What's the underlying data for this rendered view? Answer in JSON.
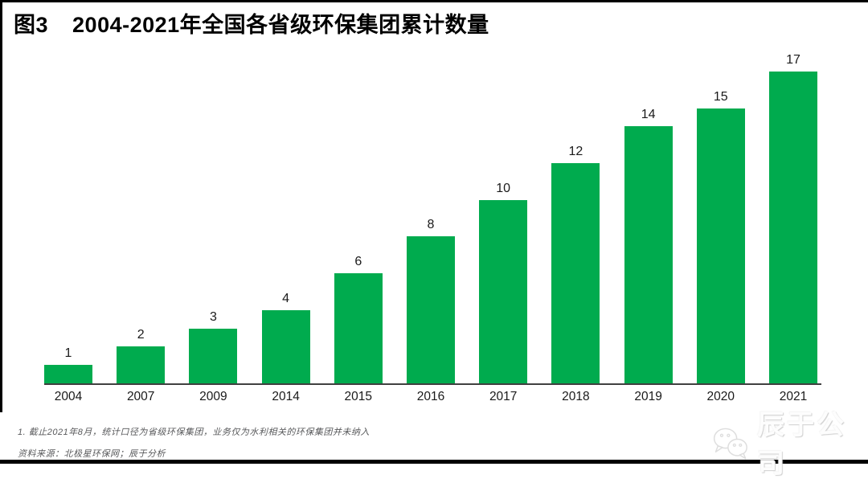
{
  "header": {
    "figure_label": "图3",
    "title": "2004-2021年全国各省级环保集团累计数量"
  },
  "chart_data": {
    "type": "bar",
    "title": "图3 2004-2021年全国各省级环保集团累计数量",
    "categories": [
      "2004",
      "2007",
      "2009",
      "2014",
      "2015",
      "2016",
      "2017",
      "2018",
      "2019",
      "2020",
      "2021"
    ],
    "values": [
      1,
      2,
      3,
      4,
      6,
      8,
      10,
      12,
      14,
      15,
      17
    ],
    "xlabel": "",
    "ylabel": "",
    "ylim": [
      0,
      17
    ],
    "grid": false,
    "legend": "none",
    "value_labels_shown": true,
    "bar_color": "#00AB4E"
  },
  "footer": {
    "note": "1. 截止2021年8月，统计口径为省级环保集团，业务仅为水利相关的环保集团并未纳入",
    "source": "资料来源：北极星环保网；辰于分析"
  },
  "watermark": {
    "label": "辰于公司",
    "icon": "wechat-chat-bubbles-logo"
  },
  "colors": {
    "bar": "#00AB4E",
    "axis": "#404040",
    "note_text": "#58595b",
    "border": "#000000"
  }
}
